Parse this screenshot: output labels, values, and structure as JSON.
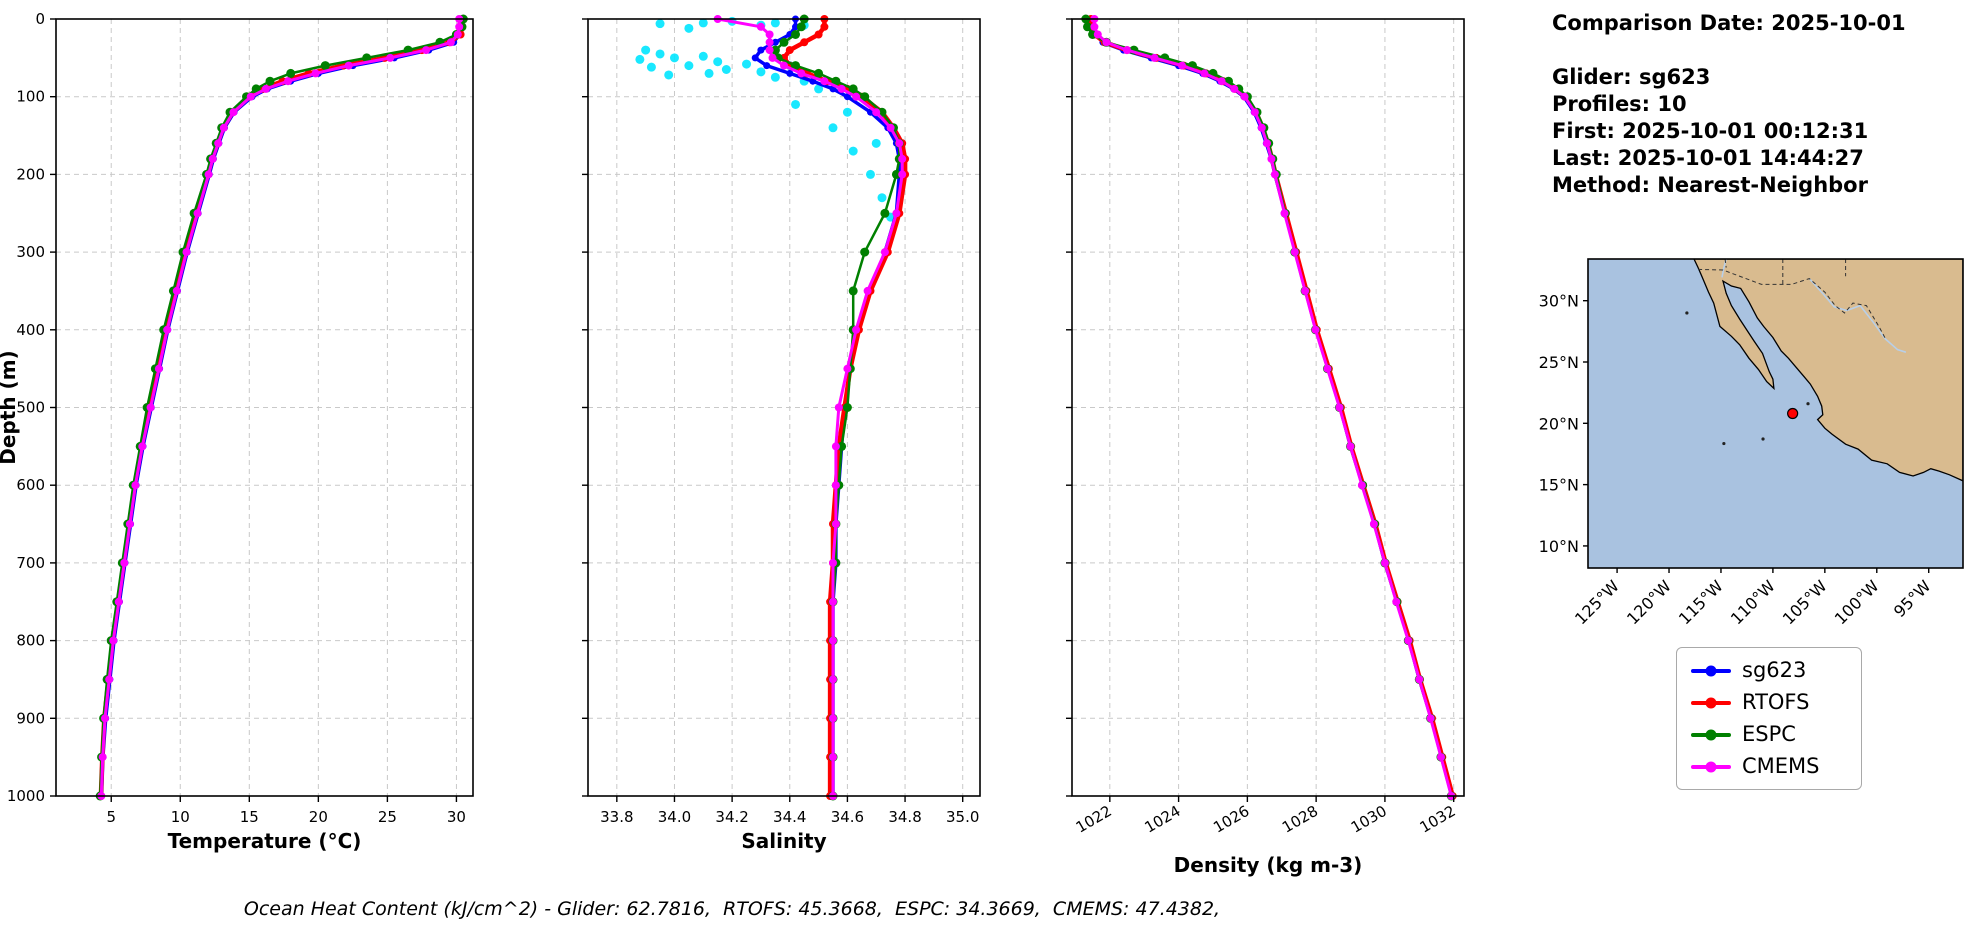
{
  "info_panel": {
    "comparison_date": "Comparison Date: 2025-10-01",
    "glider": "Glider: sg623",
    "profiles": "Profiles: 10",
    "first": "First: 2025-10-01 00:12:31",
    "last": "Last: 2025-10-01 14:44:27",
    "method": "Method: Nearest-Neighbor"
  },
  "footer": {
    "text": "Ocean Heat Content (kJ/cm^2) - Glider: 62.7816,  RTOFS: 45.3668,  ESPC: 34.3669,  CMEMS: 47.4382,"
  },
  "legend": {
    "items": [
      {
        "label": "sg623",
        "color": "#0000ff"
      },
      {
        "label": "RTOFS",
        "color": "#ff0000"
      },
      {
        "label": "ESPC",
        "color": "#008000"
      },
      {
        "label": "CMEMS",
        "color": "#ff00ff"
      }
    ]
  },
  "chart_data": [
    {
      "type": "line",
      "id": "temperature",
      "xlabel": "Temperature (°C)",
      "ylabel": "Depth (m)",
      "xlim": [
        1.0,
        31.2
      ],
      "ylim": [
        0,
        1000
      ],
      "y_inverted": true,
      "grid": true,
      "xticks": [
        5,
        10,
        15,
        20,
        25,
        30
      ],
      "yticks": [
        0,
        100,
        200,
        300,
        400,
        500,
        600,
        700,
        800,
        900,
        1000
      ],
      "depths": [
        0,
        10,
        20,
        30,
        40,
        50,
        60,
        70,
        80,
        90,
        100,
        120,
        140,
        160,
        180,
        200,
        250,
        300,
        350,
        400,
        450,
        500,
        550,
        600,
        650,
        700,
        750,
        800,
        850,
        900,
        950,
        1000
      ],
      "series": [
        {
          "name": "sg623",
          "color": "#0000ff",
          "lw": 3.5,
          "ms": 3.5,
          "values": [
            30.3,
            30.3,
            30.2,
            29.8,
            28.0,
            25.5,
            22.5,
            20.0,
            18.0,
            16.3,
            15.2,
            13.9,
            13.2,
            12.8,
            12.4,
            12.1,
            11.3,
            10.5,
            9.8,
            9.1,
            8.5,
            7.9,
            7.3,
            6.8,
            6.4,
            6.0,
            5.6,
            5.2,
            4.9,
            4.6,
            4.4,
            4.3
          ]
        },
        {
          "name": "RTOFS",
          "color": "#ff0000",
          "lw": 4.5,
          "ms": 4,
          "values": [
            30.4,
            30.4,
            30.3,
            29.5,
            27.5,
            24.8,
            21.8,
            19.3,
            17.4,
            16.0,
            15.0,
            13.8,
            13.1,
            12.7,
            12.3,
            12.0,
            11.2,
            10.4,
            9.7,
            9.0,
            8.4,
            7.8,
            7.2,
            6.7,
            6.3,
            5.9,
            5.5,
            5.1,
            4.8,
            4.5,
            4.35,
            4.25
          ]
        },
        {
          "name": "ESPC",
          "color": "#008000",
          "lw": 2.5,
          "ms": 4.5,
          "values": [
            30.5,
            30.4,
            30.0,
            28.8,
            26.5,
            23.5,
            20.5,
            18.0,
            16.5,
            15.5,
            14.8,
            13.6,
            13.0,
            12.6,
            12.2,
            11.9,
            11.0,
            10.2,
            9.5,
            8.8,
            8.2,
            7.6,
            7.1,
            6.6,
            6.2,
            5.8,
            5.4,
            5.0,
            4.7,
            4.45,
            4.3,
            4.2
          ]
        },
        {
          "name": "CMEMS",
          "color": "#ff00ff",
          "lw": 3,
          "ms": 4,
          "values": [
            30.2,
            30.2,
            30.1,
            29.6,
            27.8,
            25.2,
            22.2,
            19.8,
            17.8,
            16.2,
            15.1,
            13.85,
            13.15,
            12.75,
            12.35,
            12.05,
            11.25,
            10.45,
            9.75,
            9.05,
            8.45,
            7.85,
            7.25,
            6.75,
            6.35,
            5.95,
            5.55,
            5.15,
            4.85,
            4.55,
            4.38,
            4.28
          ]
        }
      ]
    },
    {
      "type": "line",
      "id": "salinity",
      "xlabel": "Salinity",
      "ylabel": "",
      "xlim": [
        33.7,
        35.06
      ],
      "ylim": [
        0,
        1000
      ],
      "y_inverted": true,
      "grid": true,
      "xticks": [
        33.8,
        34.0,
        34.2,
        34.4,
        34.6,
        34.8,
        35.0
      ],
      "xtick_labels": [
        "33.8",
        "34.0",
        "34.2",
        "34.4",
        "34.6",
        "34.8",
        "35.0"
      ],
      "yticks": [
        0,
        100,
        200,
        300,
        400,
        500,
        600,
        700,
        800,
        900,
        1000
      ],
      "depths": [
        0,
        10,
        20,
        30,
        40,
        50,
        60,
        70,
        80,
        90,
        100,
        120,
        140,
        160,
        180,
        200,
        250,
        300,
        350,
        400,
        450,
        500,
        550,
        600,
        650,
        700,
        750,
        800,
        850,
        900,
        950,
        1000
      ],
      "scatter": {
        "name": "glider-raw-salinity",
        "color": "#00e5ff",
        "points": [
          [
            34.2,
            3
          ],
          [
            34.1,
            5
          ],
          [
            33.95,
            6
          ],
          [
            34.3,
            8
          ],
          [
            34.05,
            12
          ],
          [
            34.35,
            5
          ],
          [
            34.45,
            8
          ],
          [
            33.9,
            40
          ],
          [
            33.95,
            45
          ],
          [
            34.0,
            50
          ],
          [
            34.1,
            48
          ],
          [
            34.15,
            55
          ],
          [
            33.88,
            52
          ],
          [
            34.25,
            58
          ],
          [
            34.05,
            60
          ],
          [
            33.92,
            62
          ],
          [
            34.18,
            65
          ],
          [
            34.3,
            68
          ],
          [
            34.12,
            70
          ],
          [
            33.98,
            72
          ],
          [
            34.35,
            75
          ],
          [
            34.4,
            60
          ],
          [
            34.45,
            80
          ],
          [
            34.5,
            90
          ],
          [
            34.42,
            110
          ],
          [
            34.55,
            140
          ],
          [
            34.7,
            160
          ],
          [
            34.62,
            170
          ],
          [
            34.68,
            200
          ],
          [
            34.6,
            120
          ],
          [
            34.72,
            230
          ],
          [
            34.75,
            255
          ]
        ]
      },
      "series": [
        {
          "name": "sg623",
          "color": "#0000ff",
          "lw": 3.5,
          "ms": 3.5,
          "values": [
            34.42,
            34.42,
            34.4,
            34.35,
            34.3,
            34.28,
            34.32,
            34.4,
            34.48,
            34.55,
            34.6,
            34.68,
            34.74,
            34.77,
            34.78,
            34.78,
            34.77,
            34.73,
            34.68,
            34.64,
            34.61,
            34.59,
            34.58,
            34.57,
            34.56,
            34.56,
            34.55,
            34.55,
            34.55,
            34.55,
            34.55,
            34.55
          ]
        },
        {
          "name": "RTOFS",
          "color": "#ff0000",
          "lw": 4.5,
          "ms": 4,
          "values": [
            34.52,
            34.52,
            34.5,
            34.45,
            34.4,
            34.38,
            34.4,
            34.46,
            34.53,
            34.6,
            34.65,
            34.72,
            34.76,
            34.79,
            34.8,
            34.8,
            34.78,
            34.74,
            34.68,
            34.64,
            34.61,
            34.59,
            34.57,
            34.56,
            34.55,
            34.55,
            34.54,
            34.54,
            34.54,
            34.54,
            34.54,
            34.54
          ]
        },
        {
          "name": "ESPC",
          "color": "#008000",
          "lw": 2.5,
          "ms": 4.5,
          "values": [
            34.45,
            34.44,
            34.42,
            34.38,
            34.35,
            34.36,
            34.42,
            34.5,
            34.56,
            34.62,
            34.66,
            34.72,
            34.76,
            34.78,
            34.78,
            34.77,
            34.73,
            34.66,
            34.62,
            34.62,
            34.61,
            34.6,
            34.58,
            34.57,
            34.56,
            34.56,
            34.55,
            34.55,
            34.55,
            34.55,
            34.55,
            34.55
          ]
        },
        {
          "name": "CMEMS",
          "color": "#ff00ff",
          "lw": 3,
          "ms": 4,
          "values": [
            34.15,
            34.3,
            34.33,
            34.33,
            34.33,
            34.34,
            34.38,
            34.44,
            34.52,
            34.58,
            34.63,
            34.7,
            34.75,
            34.78,
            34.79,
            34.79,
            34.77,
            34.73,
            34.67,
            34.63,
            34.6,
            34.57,
            34.56,
            34.56,
            34.56,
            34.55,
            34.55,
            34.55,
            34.55,
            34.55,
            34.55,
            34.55
          ]
        }
      ]
    },
    {
      "type": "line",
      "id": "density",
      "xlabel": "Density (kg m-3)",
      "ylabel": "",
      "xlim": [
        1020.9,
        1032.3
      ],
      "ylim": [
        0,
        1000
      ],
      "y_inverted": true,
      "grid": true,
      "rotated_xticks": true,
      "xticks": [
        1022,
        1024,
        1026,
        1028,
        1030,
        1032
      ],
      "yticks": [
        0,
        100,
        200,
        300,
        400,
        500,
        600,
        700,
        800,
        900,
        1000
      ],
      "depths": [
        0,
        10,
        20,
        30,
        40,
        50,
        60,
        70,
        80,
        90,
        100,
        120,
        140,
        160,
        180,
        200,
        250,
        300,
        350,
        400,
        450,
        500,
        550,
        600,
        650,
        700,
        750,
        800,
        850,
        900,
        950,
        1000
      ],
      "series": [
        {
          "name": "sg623",
          "color": "#0000ff",
          "lw": 3.5,
          "ms": 3.5,
          "values": [
            1021.5,
            1021.5,
            1021.6,
            1021.8,
            1022.4,
            1023.2,
            1024.0,
            1024.7,
            1025.2,
            1025.6,
            1025.9,
            1026.2,
            1026.4,
            1026.55,
            1026.7,
            1026.8,
            1027.1,
            1027.4,
            1027.7,
            1028.0,
            1028.35,
            1028.7,
            1029.0,
            1029.35,
            1029.7,
            1030.0,
            1030.35,
            1030.7,
            1031.0,
            1031.35,
            1031.65,
            1031.95
          ]
        },
        {
          "name": "RTOFS",
          "color": "#ff0000",
          "lw": 4.5,
          "ms": 4,
          "values": [
            1021.45,
            1021.45,
            1021.55,
            1021.85,
            1022.5,
            1023.35,
            1024.15,
            1024.8,
            1025.3,
            1025.65,
            1025.95,
            1026.25,
            1026.45,
            1026.6,
            1026.72,
            1026.82,
            1027.12,
            1027.42,
            1027.72,
            1028.02,
            1028.37,
            1028.72,
            1029.02,
            1029.37,
            1029.72,
            1030.02,
            1030.37,
            1030.72,
            1031.02,
            1031.37,
            1031.67,
            1031.97
          ]
        },
        {
          "name": "ESPC",
          "color": "#008000",
          "lw": 2.5,
          "ms": 4.5,
          "values": [
            1021.3,
            1021.35,
            1021.5,
            1021.9,
            1022.7,
            1023.6,
            1024.4,
            1025.0,
            1025.45,
            1025.75,
            1026.0,
            1026.28,
            1026.48,
            1026.62,
            1026.74,
            1026.84,
            1027.1,
            1027.38,
            1027.68,
            1027.98,
            1028.33,
            1028.68,
            1029.0,
            1029.35,
            1029.7,
            1030.0,
            1030.35,
            1030.68,
            1031.0,
            1031.33,
            1031.63,
            1031.93
          ]
        },
        {
          "name": "CMEMS",
          "color": "#ff00ff",
          "lw": 3,
          "ms": 4,
          "values": [
            1021.55,
            1021.55,
            1021.65,
            1021.9,
            1022.5,
            1023.3,
            1024.1,
            1024.75,
            1025.25,
            1025.62,
            1025.92,
            1026.22,
            1026.42,
            1026.57,
            1026.7,
            1026.8,
            1027.08,
            1027.38,
            1027.68,
            1027.98,
            1028.33,
            1028.68,
            1029.0,
            1029.33,
            1029.68,
            1030.0,
            1030.33,
            1030.68,
            1031.0,
            1031.33,
            1031.63,
            1031.93
          ]
        }
      ]
    }
  ],
  "map": {
    "extent": {
      "lon_min": -127.8,
      "lon_max": -91.7,
      "lat_min": 8.2,
      "lat_max": 33.4
    },
    "lon_ticks": [
      {
        "value": -125,
        "label": "125°W"
      },
      {
        "value": -120,
        "label": "120°W"
      },
      {
        "value": -115,
        "label": "115°W"
      },
      {
        "value": -110,
        "label": "110°W"
      },
      {
        "value": -105,
        "label": "105°W"
      },
      {
        "value": -100,
        "label": "100°W"
      },
      {
        "value": -95,
        "label": "95°W"
      }
    ],
    "lat_ticks": [
      {
        "value": 30,
        "label": "30°N"
      },
      {
        "value": 25,
        "label": "25°N"
      },
      {
        "value": 20,
        "label": "20°N"
      },
      {
        "value": 15,
        "label": "15°N"
      },
      {
        "value": 10,
        "label": "10°N"
      }
    ],
    "marker": {
      "lon": -108.1,
      "lat": 20.8,
      "color": "#ff0000"
    },
    "ocean_color": "#a9c2e0",
    "land_color": "#d9bb8f",
    "coast_color": "#000000",
    "river_color": "#b8cfe8"
  }
}
